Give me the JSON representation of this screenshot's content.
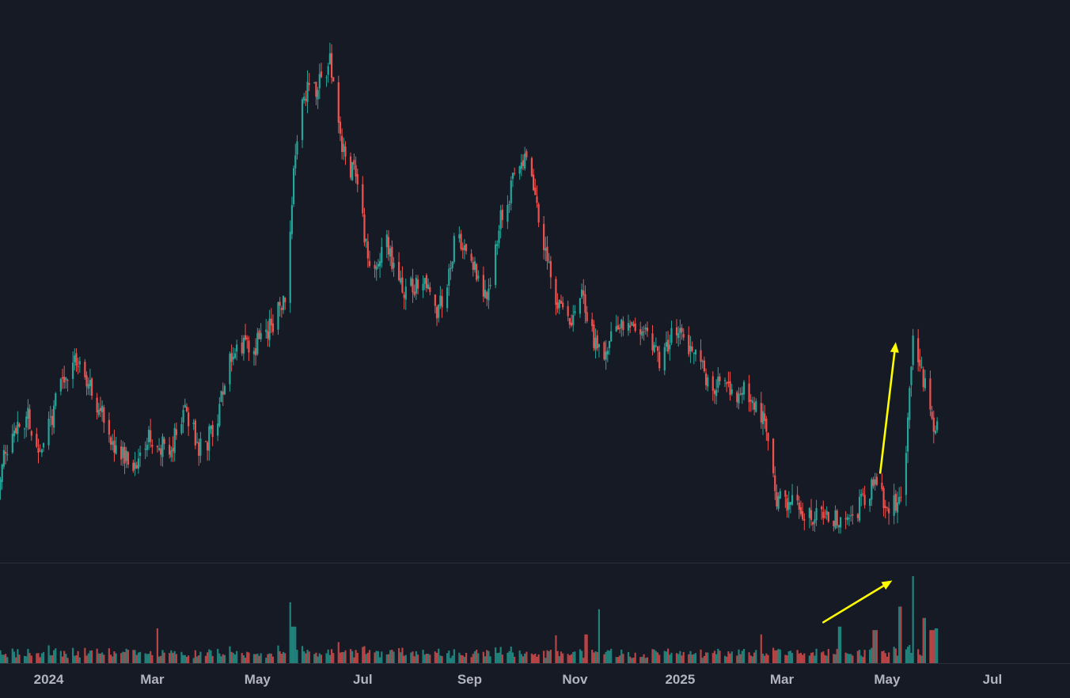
{
  "chart_data": {
    "type": "candlestick",
    "price_pane": {
      "ylim": [
        0,
        1
      ]
    },
    "volume_pane": {
      "ylim": [
        0,
        1
      ]
    },
    "x_axis": {
      "range": [
        "2023-12-01",
        "2025-08-15"
      ],
      "ticks": [
        {
          "label": "2024",
          "date": "2024-01-01"
        },
        {
          "label": "Mar",
          "date": "2024-03-01"
        },
        {
          "label": "May",
          "date": "2024-05-01"
        },
        {
          "label": "Jul",
          "date": "2024-07-01"
        },
        {
          "label": "Sep",
          "date": "2024-09-01"
        },
        {
          "label": "Nov",
          "date": "2024-11-01"
        },
        {
          "label": "2025",
          "date": "2025-01-01"
        },
        {
          "label": "Mar",
          "date": "2025-03-01"
        },
        {
          "label": "May",
          "date": "2025-05-01"
        },
        {
          "label": "Jul",
          "date": "2025-07-01"
        }
      ]
    },
    "price_path": [
      [
        "2023-12-01",
        0.1
      ],
      [
        "2023-12-10",
        0.23
      ],
      [
        "2023-12-20",
        0.26
      ],
      [
        "2023-12-28",
        0.18
      ],
      [
        "2024-01-08",
        0.34
      ],
      [
        "2024-01-18",
        0.38
      ],
      [
        "2024-01-28",
        0.3
      ],
      [
        "2024-02-08",
        0.19
      ],
      [
        "2024-02-20",
        0.16
      ],
      [
        "2024-03-01",
        0.22
      ],
      [
        "2024-03-10",
        0.18
      ],
      [
        "2024-03-20",
        0.28
      ],
      [
        "2024-03-30",
        0.18
      ],
      [
        "2024-04-08",
        0.27
      ],
      [
        "2024-04-18",
        0.42
      ],
      [
        "2024-04-28",
        0.4
      ],
      [
        "2024-05-08",
        0.45
      ],
      [
        "2024-05-18",
        0.52
      ],
      [
        "2024-05-22",
        0.78
      ],
      [
        "2024-05-28",
        0.95
      ],
      [
        "2024-06-05",
        0.96
      ],
      [
        "2024-06-12",
        1.03
      ],
      [
        "2024-06-20",
        0.82
      ],
      [
        "2024-06-28",
        0.76
      ],
      [
        "2024-07-05",
        0.57
      ],
      [
        "2024-07-14",
        0.64
      ],
      [
        "2024-07-24",
        0.52
      ],
      [
        "2024-08-04",
        0.56
      ],
      [
        "2024-08-14",
        0.48
      ],
      [
        "2024-08-24",
        0.64
      ],
      [
        "2024-09-02",
        0.58
      ],
      [
        "2024-09-12",
        0.52
      ],
      [
        "2024-09-20",
        0.7
      ],
      [
        "2024-09-28",
        0.78
      ],
      [
        "2024-10-04",
        0.81
      ],
      [
        "2024-10-12",
        0.68
      ],
      [
        "2024-10-20",
        0.52
      ],
      [
        "2024-10-30",
        0.47
      ],
      [
        "2024-11-06",
        0.52
      ],
      [
        "2024-11-14",
        0.39
      ],
      [
        "2024-11-22",
        0.42
      ],
      [
        "2024-12-01",
        0.48
      ],
      [
        "2024-12-10",
        0.45
      ],
      [
        "2024-12-20",
        0.38
      ],
      [
        "2024-12-30",
        0.45
      ],
      [
        "2025-01-08",
        0.4
      ],
      [
        "2025-01-18",
        0.33
      ],
      [
        "2025-01-28",
        0.32
      ],
      [
        "2025-02-08",
        0.31
      ],
      [
        "2025-02-18",
        0.25
      ],
      [
        "2025-02-26",
        0.08
      ],
      [
        "2025-03-08",
        0.08
      ],
      [
        "2025-03-18",
        0.05
      ],
      [
        "2025-03-28",
        0.04
      ],
      [
        "2025-04-07",
        0.03
      ],
      [
        "2025-04-17",
        0.08
      ],
      [
        "2025-04-25",
        0.13
      ],
      [
        "2025-05-02",
        0.05
      ],
      [
        "2025-05-09",
        0.09
      ],
      [
        "2025-05-13",
        0.24
      ],
      [
        "2025-05-16",
        0.41
      ],
      [
        "2025-05-20",
        0.38
      ],
      [
        "2025-05-24",
        0.31
      ],
      [
        "2025-05-28",
        0.23
      ],
      [
        "2025-06-01",
        0.26
      ]
    ],
    "volume_spikes": [
      {
        "date": "2024-03-03",
        "value": 0.4
      },
      {
        "date": "2024-05-20",
        "value": 0.7
      },
      {
        "date": "2024-05-22",
        "value": 0.42
      },
      {
        "date": "2024-10-20",
        "value": 0.32
      },
      {
        "date": "2024-11-08",
        "value": 0.33
      },
      {
        "date": "2024-11-16",
        "value": 0.62
      },
      {
        "date": "2025-02-16",
        "value": 0.33
      },
      {
        "date": "2025-04-04",
        "value": 0.42
      },
      {
        "date": "2025-04-24",
        "value": 0.38
      },
      {
        "date": "2025-05-09",
        "value": 0.65
      },
      {
        "date": "2025-05-17",
        "value": 1.0
      },
      {
        "date": "2025-05-23",
        "value": 0.52
      },
      {
        "date": "2025-05-27",
        "value": 0.38
      },
      {
        "date": "2025-05-30",
        "value": 0.4
      }
    ],
    "annotations": [
      {
        "pane": "price",
        "type": "arrow",
        "color": "#ffff00",
        "from": [
          "2025-04-27",
          0.14
        ],
        "to": [
          "2025-05-06",
          0.42
        ]
      },
      {
        "pane": "volume",
        "type": "arrow",
        "color": "#ffff00",
        "from": [
          "2025-03-25",
          0.47
        ],
        "to": [
          "2025-05-04",
          0.95
        ]
      }
    ]
  },
  "colors": {
    "background": "#161a25",
    "up": "#26a69a",
    "down": "#ef5350",
    "annotation": "#ffff00",
    "axis_text": "#b2b5be",
    "divider": "#2a2e39"
  }
}
